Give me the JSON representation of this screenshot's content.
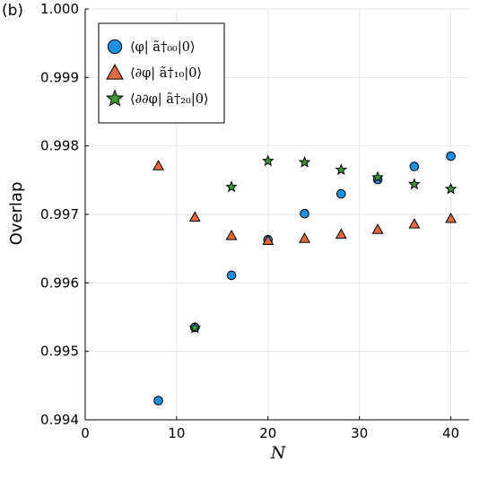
{
  "panel_label": "(b)",
  "chart_data": {
    "type": "scatter",
    "title": "",
    "xlabel": "N",
    "ylabel": "Overlap",
    "xlim": [
      0,
      42
    ],
    "ylim": [
      0.994,
      1.0
    ],
    "xticks": [
      0,
      10,
      20,
      30,
      40
    ],
    "xtick_labels": [
      "0",
      "10",
      "20",
      "30",
      "40"
    ],
    "yticks": [
      0.994,
      0.995,
      0.996,
      0.997,
      0.998,
      0.999,
      1.0
    ],
    "ytick_labels": [
      "0.994",
      "0.995",
      "0.996",
      "0.997",
      "0.998",
      "0.999",
      "1.000"
    ],
    "grid": true,
    "legend_position": "top-left",
    "series": [
      {
        "name": "⟨φ| ã†₀₀|0⟩",
        "marker": "circle",
        "color": "#1f8fe0",
        "x": [
          8,
          12,
          16,
          20,
          24,
          28,
          32,
          36,
          40
        ],
        "y": [
          0.99428,
          0.99535,
          0.99611,
          0.99663,
          0.99701,
          0.9973,
          0.99751,
          0.9977,
          0.99785
        ]
      },
      {
        "name": "⟨∂φ| ã†₁₀|0⟩",
        "marker": "triangle",
        "color": "#e06a3f",
        "x": [
          8,
          12,
          16,
          20,
          24,
          28,
          32,
          36,
          40
        ],
        "y": [
          0.99771,
          0.99696,
          0.99669,
          0.99662,
          0.99665,
          0.99671,
          0.99678,
          0.99686,
          0.99694
        ]
      },
      {
        "name": "⟨∂∂φ| ã†₂₀|0⟩",
        "marker": "star",
        "color": "#3a9a3a",
        "x": [
          12,
          16,
          20,
          24,
          28,
          32,
          36,
          40
        ],
        "y": [
          0.99534,
          0.9974,
          0.99778,
          0.99776,
          0.99765,
          0.99754,
          0.99744,
          0.99737
        ]
      }
    ]
  }
}
